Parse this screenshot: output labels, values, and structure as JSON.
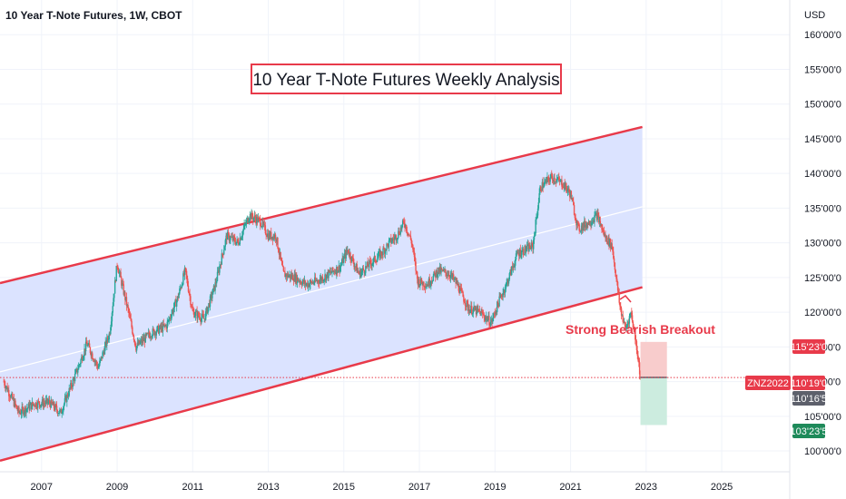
{
  "header": {
    "symbol_title": "10 Year T-Note Futures, 1W, CBOT"
  },
  "annotations": {
    "title_box": "10 Year T-Note Futures Weekly Analysis",
    "breakout_label": "Strong Bearish Breakout"
  },
  "price_tags": {
    "take_profit": "115'23'0",
    "current_symbol": "ZNZ2022",
    "current_price": "110'19'0",
    "stop_ref": "110'16'5",
    "target": "103'23'5"
  },
  "colors": {
    "channel_line": "#e83a4a",
    "channel_fill": "#dbe3ff",
    "mid_line": "#ffffff",
    "candle_up": "#26a69a",
    "candle_down": "#ef5350",
    "loss_zone": "#f8cccc",
    "profit_zone": "#ccecdf",
    "price_tag_red": "#e83a4a",
    "price_tag_green": "#1e8a5a",
    "price_tag_gray": "#5d606b"
  },
  "chart_data": {
    "type": "candlestick",
    "title": "10 Year T-Note Futures, 1W, CBOT",
    "currency": "USD",
    "ylim": [
      97,
      165
    ],
    "y_ticks": [
      "160'00'0",
      "155'00'0",
      "150'00'0",
      "145'00'0",
      "140'00'0",
      "135'00'0",
      "130'00'0",
      "125'00'0",
      "120'00'0",
      "115'00'0",
      "110'00'0",
      "105'00'0",
      "100'00'0"
    ],
    "y_tick_values": [
      160,
      155,
      150,
      145,
      140,
      135,
      130,
      125,
      120,
      115,
      110,
      105,
      100
    ],
    "xlim": [
      2005.9,
      2026.8
    ],
    "x_ticks": [
      "2007",
      "2009",
      "2011",
      "2013",
      "2015",
      "2017",
      "2019",
      "2021",
      "2023",
      "2025"
    ],
    "x_tick_values": [
      2007,
      2009,
      2011,
      2013,
      2015,
      2017,
      2019,
      2021,
      2023,
      2025
    ],
    "price_path": [
      [
        2006.0,
        110.0
      ],
      [
        2006.4,
        105.5
      ],
      [
        2006.8,
        106.8
      ],
      [
        2007.2,
        107.0
      ],
      [
        2007.5,
        105.5
      ],
      [
        2007.9,
        111.0
      ],
      [
        2008.2,
        115.5
      ],
      [
        2008.5,
        112.0
      ],
      [
        2008.8,
        117.0
      ],
      [
        2009.0,
        127.0
      ],
      [
        2009.3,
        120.0
      ],
      [
        2009.5,
        115.0
      ],
      [
        2009.9,
        117.0
      ],
      [
        2010.3,
        118.0
      ],
      [
        2010.6,
        122.0
      ],
      [
        2010.8,
        126.0
      ],
      [
        2011.0,
        120.0
      ],
      [
        2011.3,
        119.0
      ],
      [
        2011.6,
        124.0
      ],
      [
        2011.9,
        131.0
      ],
      [
        2012.2,
        130.0
      ],
      [
        2012.5,
        134.0
      ],
      [
        2012.8,
        133.0
      ],
      [
        2013.0,
        131.0
      ],
      [
        2013.2,
        131.0
      ],
      [
        2013.4,
        125.5
      ],
      [
        2013.7,
        125.0
      ],
      [
        2014.0,
        124.0
      ],
      [
        2014.3,
        124.5
      ],
      [
        2014.6,
        125.5
      ],
      [
        2014.9,
        126.5
      ],
      [
        2015.1,
        129.0
      ],
      [
        2015.4,
        125.5
      ],
      [
        2015.7,
        127.0
      ],
      [
        2016.0,
        128.5
      ],
      [
        2016.2,
        130.0
      ],
      [
        2016.4,
        131.0
      ],
      [
        2016.6,
        133.0
      ],
      [
        2016.8,
        130.0
      ],
      [
        2016.95,
        124.5
      ],
      [
        2017.2,
        124.0
      ],
      [
        2017.5,
        126.0
      ],
      [
        2017.8,
        125.5
      ],
      [
        2018.0,
        124.0
      ],
      [
        2018.3,
        120.5
      ],
      [
        2018.6,
        120.0
      ],
      [
        2018.9,
        118.5
      ],
      [
        2019.1,
        121.5
      ],
      [
        2019.3,
        124.0
      ],
      [
        2019.6,
        128.5
      ],
      [
        2019.8,
        129.0
      ],
      [
        2020.0,
        129.5
      ],
      [
        2020.2,
        138.0
      ],
      [
        2020.5,
        139.5
      ],
      [
        2020.8,
        138.5
      ],
      [
        2021.0,
        137.0
      ],
      [
        2021.2,
        132.0
      ],
      [
        2021.5,
        133.0
      ],
      [
        2021.7,
        134.0
      ],
      [
        2021.9,
        131.0
      ],
      [
        2022.1,
        129.5
      ],
      [
        2022.3,
        121.0
      ],
      [
        2022.45,
        117.5
      ],
      [
        2022.6,
        120.0
      ],
      [
        2022.75,
        115.0
      ],
      [
        2022.85,
        110.6
      ]
    ],
    "channel": {
      "upper": [
        [
          2005.9,
          124.2
        ],
        [
          2022.9,
          146.7
        ]
      ],
      "lower": [
        [
          2005.9,
          98.6
        ],
        [
          2022.9,
          123.6
        ]
      ],
      "mid": [
        [
          2005.9,
          111.4
        ],
        [
          2022.9,
          135.2
        ]
      ]
    },
    "position_box": {
      "x_range": [
        2022.85,
        2023.55
      ],
      "entry": 110.6,
      "stop": 115.72,
      "target": 103.74
    },
    "current_price_value": 110.59
  }
}
